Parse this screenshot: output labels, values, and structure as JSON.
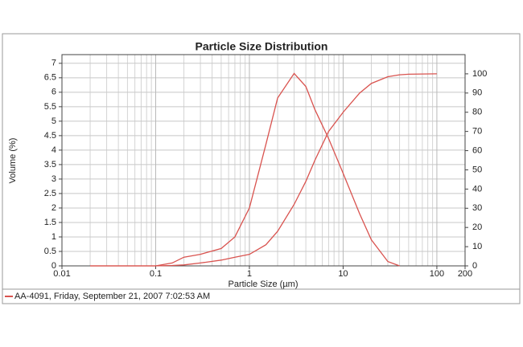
{
  "chart_data": {
    "type": "line",
    "title": "Particle Size Distribution",
    "xlabel": "Particle Size (µm)",
    "ylabel": "Volume (%)",
    "log_x": true,
    "grid": true,
    "minor_grid": true,
    "legend": "bottom",
    "x": [
      0.02,
      0.1,
      0.15,
      0.2,
      0.3,
      0.5,
      0.7,
      1,
      1.5,
      2,
      3,
      4,
      5,
      7,
      10,
      15,
      20,
      30,
      40,
      50,
      100
    ],
    "series": [
      {
        "name": "AA-4091, Friday, September 21, 2007 7:02:53 AM",
        "color": "#d9534f",
        "values": [
          0,
          0,
          0.1,
          0.3,
          0.4,
          0.6,
          1.0,
          2.0,
          4.2,
          5.8,
          6.65,
          6.2,
          5.4,
          4.4,
          3.2,
          1.8,
          0.9,
          0.15,
          0,
          null,
          null
        ]
      },
      {
        "name": null,
        "color": "#d9534f",
        "axis": "y2",
        "values": [
          0,
          0,
          0.2,
          0.5,
          1.5,
          3,
          4.5,
          6,
          11,
          18,
          32,
          44,
          55,
          70,
          80,
          90,
          95,
          98.5,
          99.5,
          99.8,
          100
        ]
      }
    ],
    "xlim": [
      0.01,
      200
    ],
    "xticks": [
      0.01,
      0.1,
      1,
      10,
      100,
      200
    ],
    "ylim": [
      0,
      7.3
    ],
    "yticks": [
      0,
      0.5,
      1,
      1.5,
      2,
      2.5,
      3,
      3.5,
      4,
      4.5,
      5,
      5.5,
      6,
      6.5,
      7
    ],
    "y2lim": [
      0,
      110
    ],
    "y2ticks": [
      0,
      10,
      20,
      30,
      40,
      50,
      60,
      70,
      80,
      90,
      100
    ]
  }
}
